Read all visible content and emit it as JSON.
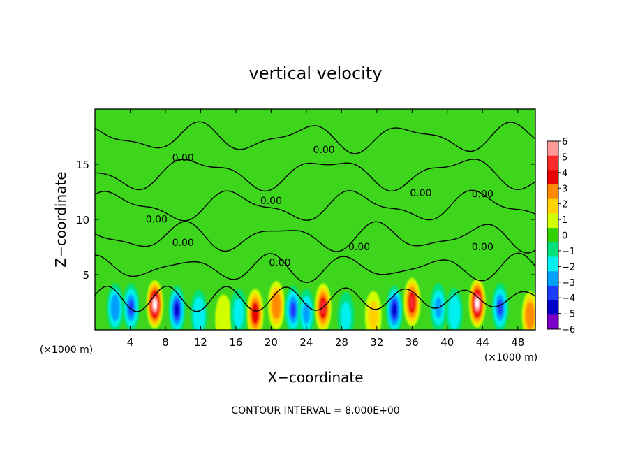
{
  "chart_data": {
    "type": "heatmap",
    "title": "vertical velocity",
    "xlabel": "X−coordinate",
    "ylabel": "Z−coordinate",
    "x_unit": "(×1000 m)",
    "y_unit": "(×1000 m)",
    "xlim": [
      0,
      50
    ],
    "ylim": [
      0,
      20
    ],
    "x_ticks": [
      "4",
      "8",
      "12",
      "16",
      "20",
      "24",
      "28",
      "32",
      "36",
      "40",
      "44",
      "48"
    ],
    "y_ticks": [
      "5",
      "10",
      "15"
    ],
    "colorbar": {
      "range": [
        -6,
        6
      ],
      "tick_labels": [
        "6",
        "5",
        "4",
        "3",
        "2",
        "1",
        "0",
        "−1",
        "−2",
        "−3",
        "−4",
        "−5",
        "−6"
      ],
      "colors": [
        "#ff9a9a",
        "#ff2a2a",
        "#e80000",
        "#ff8c00",
        "#ffd200",
        "#d2ff00",
        "#32d200",
        "#00e07a",
        "#00f0f0",
        "#00a0ff",
        "#1c3cff",
        "#0000c8",
        "#7a00c8"
      ]
    },
    "contour_level_label": "0.00",
    "footer": "CONTOUR INTERVAL = 8.000E+00",
    "cells": [
      {
        "x": 2.3,
        "z": 2.0,
        "w": -3.2
      },
      {
        "x": 4.1,
        "z": 2.0,
        "w": -4.0
      },
      {
        "x": 6.8,
        "z": 2.3,
        "w": 6.5
      },
      {
        "x": 9.3,
        "z": 1.8,
        "w": -4.5
      },
      {
        "x": 11.8,
        "z": 1.4,
        "w": -2.2
      },
      {
        "x": 14.6,
        "z": 1.0,
        "w": 0.9
      },
      {
        "x": 16.3,
        "z": 1.5,
        "w": -2.0
      },
      {
        "x": 18.2,
        "z": 1.5,
        "w": 4.2
      },
      {
        "x": 20.6,
        "z": 2.2,
        "w": 3.5
      },
      {
        "x": 22.5,
        "z": 1.8,
        "w": -3.5
      },
      {
        "x": 24.0,
        "z": 1.5,
        "w": -2.5
      },
      {
        "x": 25.9,
        "z": 2.0,
        "w": 4.6
      },
      {
        "x": 28.5,
        "z": 1.2,
        "w": -2.0
      },
      {
        "x": 31.6,
        "z": 1.3,
        "w": 2.0
      },
      {
        "x": 34.0,
        "z": 1.8,
        "w": -5.0
      },
      {
        "x": 36.0,
        "z": 2.5,
        "w": 4.8
      },
      {
        "x": 39.0,
        "z": 2.0,
        "w": -3.0
      },
      {
        "x": 40.8,
        "z": 1.6,
        "w": -2.4
      },
      {
        "x": 43.4,
        "z": 2.4,
        "w": 6.5
      },
      {
        "x": 46.0,
        "z": 2.0,
        "w": -3.5
      },
      {
        "x": 49.4,
        "z": 1.3,
        "w": 3.2
      }
    ]
  }
}
